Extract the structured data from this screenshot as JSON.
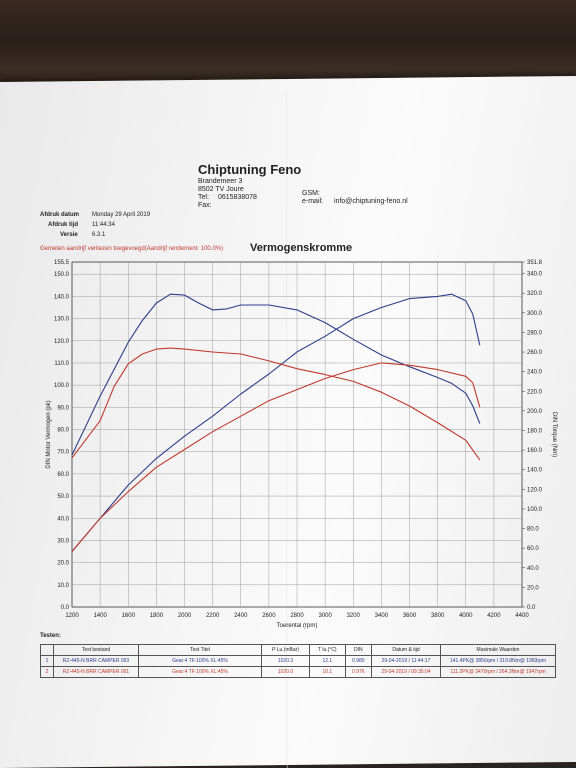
{
  "header": {
    "company": "Chiptuning Feno",
    "address_line1": "Brandemeer 3",
    "address_line2": "8502 TV Joure",
    "tel_label": "Tel:",
    "tel_value": "0615838078",
    "fax_label": "Fax:",
    "gsm_label": "GSM:",
    "email_label": "e-mail:",
    "email_value": "info@chiptuning-feno.nl"
  },
  "print_info": {
    "date_label": "Afdruk datum",
    "date_value": "Monday 29 April 2019",
    "time_label": "Afdruk tijd",
    "time_value": "11:44:34",
    "version_label": "Versie",
    "version_value": "6.3.1"
  },
  "warning": "Gemeten aandrijf verliezen toegevoegd(Aandrijf rendement: 100.0%)",
  "chart_data": {
    "type": "line",
    "title": "Vermogenskromme",
    "xlabel": "Toerental (rpm)",
    "ylabel_left": "DIN Motor Vermogen (pk)",
    "ylabel_right": "DIN Torque (Nm)",
    "xlim": [
      1200,
      4400
    ],
    "x_ticks": [
      "1200",
      "1400",
      "1600",
      "1800",
      "2000",
      "2200",
      "2400",
      "2600",
      "2800",
      "3000",
      "3200",
      "3400",
      "3600",
      "3800",
      "4000",
      "4200",
      "4400"
    ],
    "ylim_left": [
      0,
      155.5
    ],
    "y_ticks_left": [
      "155.5",
      "150.0",
      "140.0",
      "130.0",
      "120.0",
      "110.0",
      "100.0",
      "90.0",
      "80.0",
      "70.0",
      "60.0",
      "50.0",
      "40.0",
      "30.0",
      "20.0",
      "10.0",
      "0.0"
    ],
    "ylim_right": [
      0,
      351.8
    ],
    "y_ticks_right": [
      "351.8",
      "340.0",
      "320.0",
      "300.0",
      "280.0",
      "260.0",
      "240.0",
      "220.0",
      "200.0",
      "180.0",
      "160.0",
      "140.0",
      "120.0",
      "100.0",
      "80.0",
      "60.0",
      "40.0",
      "20.0",
      "0.0"
    ],
    "grid": true,
    "colors": {
      "blue": "#2c3e8a",
      "red": "#c0392b"
    },
    "series": [
      {
        "color": "blue",
        "axis": "right",
        "x": [
          1200,
          1400,
          1600,
          1700,
          1800,
          1900,
          2000,
          2100,
          2200,
          2300,
          2400,
          2600,
          2800,
          3000,
          3200,
          3400,
          3600,
          3800,
          3900,
          4000,
          4050,
          4100
        ],
        "y": [
          155,
          215,
          270,
          292,
          310,
          319,
          318,
          310,
          303,
          304,
          308,
          308,
          303,
          290,
          273,
          257,
          245,
          234,
          228,
          218,
          205,
          187
        ]
      },
      {
        "color": "blue",
        "axis": "left",
        "x": [
          1200,
          1400,
          1600,
          1800,
          2000,
          2200,
          2400,
          2600,
          2800,
          3000,
          3200,
          3400,
          3600,
          3800,
          3900,
          4000,
          4050,
          4100
        ],
        "y": [
          25,
          40,
          55,
          67,
          77,
          86,
          96,
          105,
          115,
          122,
          130,
          135,
          139,
          140,
          141,
          138,
          132,
          118
        ]
      },
      {
        "color": "red",
        "axis": "right",
        "x": [
          1200,
          1400,
          1500,
          1600,
          1700,
          1800,
          1900,
          2000,
          2200,
          2400,
          2600,
          2800,
          3000,
          3200,
          3400,
          3600,
          3800,
          4000,
          4050,
          4100
        ],
        "y": [
          152,
          190,
          225,
          248,
          258,
          263,
          264,
          263,
          260,
          258,
          251,
          243,
          237,
          230,
          219,
          205,
          188,
          170,
          160,
          150
        ]
      },
      {
        "color": "red",
        "axis": "left",
        "x": [
          1200,
          1400,
          1600,
          1800,
          2000,
          2200,
          2400,
          2600,
          2800,
          3000,
          3200,
          3400,
          3600,
          3800,
          4000,
          4050,
          4100
        ],
        "y": [
          25,
          40,
          52,
          63,
          71,
          79,
          86,
          93,
          98,
          103,
          107,
          110,
          109,
          107,
          104,
          101,
          90
        ]
      }
    ]
  },
  "tests": {
    "label": "Testen:",
    "headers": [
      "",
      "Test bestand",
      "Test Titel",
      "P Lu.(mBar)",
      "T lu.(°C)",
      "DIN",
      "Datum & tijd",
      "Maximale Waarden"
    ],
    "rows": [
      [
        "1",
        "RZ-445-N BRR CAMPER 003",
        "Gear:4 TF:100% XL:45%",
        "1020.3",
        "12.1",
        "0.980",
        "29-04-2019 / 11:44:17",
        "141.4PK@ 3856rpm / 319.8Nm@ 1983rpm"
      ],
      [
        "2",
        "RZ-445-N BRR CAMPER 001",
        "Gear:4 TF:100% XL:45%",
        "1020.0",
        "10.1",
        "0.976",
        "29-04-2019 / 09:35:04",
        "111.2PK@ 3470rpm / 264.3Nm@ 1947rpm"
      ]
    ]
  }
}
